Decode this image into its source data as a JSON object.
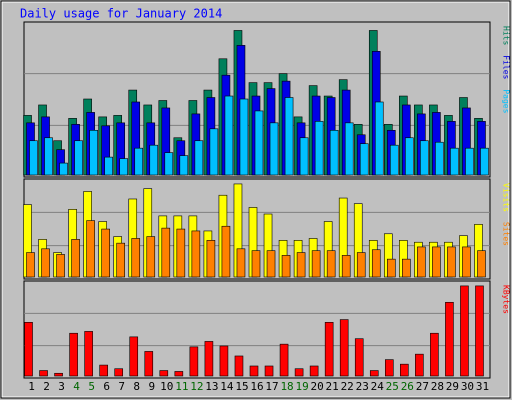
{
  "chart_data": [
    {
      "type": "bar",
      "title": "Daily usage for January 2014",
      "categories": [
        "1",
        "2",
        "3",
        "4",
        "5",
        "6",
        "7",
        "8",
        "9",
        "10",
        "11",
        "12",
        "13",
        "14",
        "15",
        "16",
        "17",
        "18",
        "19",
        "20",
        "21",
        "22",
        "23",
        "24",
        "25",
        "26",
        "27",
        "28",
        "29",
        "30",
        "31"
      ],
      "label_colors": [
        "#000000",
        "#000000",
        "#000000",
        "#006600",
        "#006600",
        "#000000",
        "#000000",
        "#000000",
        "#000000",
        "#000000",
        "#006600",
        "#006600",
        "#000000",
        "#000000",
        "#000000",
        "#000000",
        "#000000",
        "#006600",
        "#006600",
        "#000000",
        "#000000",
        "#000000",
        "#000000",
        "#000000",
        "#006600",
        "#006600",
        "#000000",
        "#000000",
        "#000000",
        "#000000",
        "#000000"
      ],
      "ylim": [
        0,
        100
      ],
      "series": [
        {
          "name": "Hits",
          "color": "#00805c",
          "values": [
            40,
            47,
            23,
            38,
            51,
            39,
            40,
            57,
            47,
            50,
            25,
            50,
            57,
            78,
            97,
            62,
            62,
            68,
            39,
            60,
            53,
            64,
            34,
            97,
            34,
            53,
            47,
            47,
            40,
            52,
            38
          ]
        },
        {
          "name": "Files",
          "color": "#0000e6",
          "values": [
            35,
            39,
            17,
            34,
            42,
            33,
            35,
            49,
            35,
            45,
            23,
            41,
            52,
            67,
            87,
            53,
            58,
            63,
            35,
            53,
            52,
            57,
            27,
            83,
            30,
            47,
            41,
            42,
            36,
            45,
            36
          ]
        },
        {
          "name": "Pages",
          "color": "#00c0ff",
          "values": [
            23,
            25,
            8,
            23,
            30,
            12,
            11,
            18,
            20,
            15,
            13,
            23,
            31,
            53,
            51,
            43,
            35,
            52,
            25,
            36,
            30,
            35,
            21,
            49,
            20,
            25,
            23,
            22,
            18,
            18,
            18
          ]
        }
      ]
    },
    {
      "type": "bar",
      "ylim": [
        0,
        100
      ],
      "series": [
        {
          "name": "Visits",
          "color": "#ffff00",
          "values": [
            77,
            40,
            26,
            72,
            91,
            59,
            43,
            83,
            94,
            65,
            65,
            65,
            49,
            87,
            99,
            74,
            67,
            39,
            39,
            41,
            59,
            84,
            78,
            39,
            46,
            39,
            37,
            37,
            37,
            44,
            56
          ]
        },
        {
          "name": "Sites",
          "color": "#ff8000",
          "values": [
            26,
            30,
            24,
            40,
            60,
            51,
            36,
            41,
            43,
            52,
            51,
            49,
            39,
            54,
            30,
            28,
            28,
            23,
            26,
            28,
            28,
            23,
            26,
            29,
            19,
            19,
            32,
            32,
            32,
            32,
            28
          ]
        }
      ]
    },
    {
      "type": "bar",
      "ylim": [
        0,
        100
      ],
      "series": [
        {
          "name": "KBytes",
          "color": "#ff0000",
          "values": [
            59,
            6,
            3,
            47,
            49,
            12,
            8,
            43,
            27,
            6,
            5,
            32,
            38,
            33,
            22,
            11,
            11,
            35,
            8,
            11,
            59,
            62,
            41,
            6,
            18,
            13,
            24,
            47,
            81,
            99,
            99
          ]
        }
      ]
    }
  ]
}
